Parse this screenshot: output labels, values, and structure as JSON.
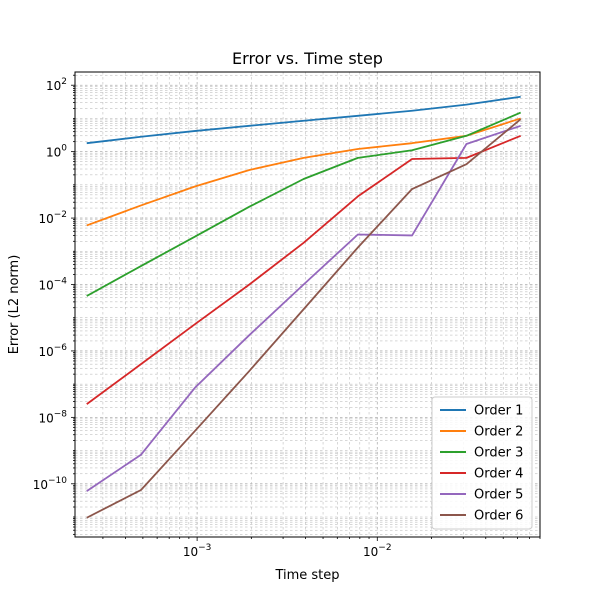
{
  "chart_data": {
    "type": "line",
    "title": "Error vs. Time step",
    "xlabel": "Time step",
    "ylabel": "Error (L2 norm)",
    "xscale": "log",
    "yscale": "log",
    "xlim": [
      0.00021,
      0.08
    ],
    "ylim": [
      2.5e-12,
      250
    ],
    "grid": true,
    "legend_position": "lower-right",
    "x_ticks": [
      {
        "value": 0.001,
        "base": "10",
        "exp": "−3"
      },
      {
        "value": 0.01,
        "base": "10",
        "exp": "−2"
      }
    ],
    "y_ticks": [
      {
        "value": 1e-10,
        "base": "10",
        "exp": "−10"
      },
      {
        "value": 1e-08,
        "base": "10",
        "exp": "−8"
      },
      {
        "value": 1e-06,
        "base": "10",
        "exp": "−6"
      },
      {
        "value": 0.0001,
        "base": "10",
        "exp": "−4"
      },
      {
        "value": 0.01,
        "base": "10",
        "exp": "−2"
      },
      {
        "value": 1,
        "base": "10",
        "exp": "0"
      },
      {
        "value": 100,
        "base": "10",
        "exp": "2"
      }
    ],
    "x": [
      0.000244,
      0.000488,
      0.000977,
      0.00195,
      0.0039,
      0.0078,
      0.0156,
      0.03125,
      0.0625
    ],
    "series": [
      {
        "name": "Order 1",
        "color": "#1f77b4",
        "values": [
          1.8,
          2.8,
          4.2,
          6.0,
          8.5,
          12.0,
          17.0,
          26.0,
          45.0
        ]
      },
      {
        "name": "Order 2",
        "color": "#ff7f0e",
        "values": [
          0.006,
          0.024,
          0.09,
          0.28,
          0.65,
          1.2,
          1.8,
          3.0,
          10.0
        ]
      },
      {
        "name": "Order 3",
        "color": "#2ca02c",
        "values": [
          4.5e-05,
          0.00036,
          0.0028,
          0.022,
          0.15,
          0.65,
          1.1,
          3.0,
          15.0
        ]
      },
      {
        "name": "Order 4",
        "color": "#d62728",
        "values": [
          2.5e-08,
          4e-07,
          6.5e-06,
          0.0001,
          0.0018,
          0.045,
          0.6,
          0.65,
          3.0
        ]
      },
      {
        "name": "Order 5",
        "color": "#9467bd",
        "values": [
          6e-11,
          7.5e-10,
          8e-08,
          3e-06,
          0.0001,
          0.0032,
          0.003,
          1.7,
          6.0
        ]
      },
      {
        "name": "Order 6",
        "color": "#8c564b",
        "values": [
          9.5e-12,
          6.5e-11,
          4e-09,
          2.5e-07,
          1.8e-05,
          0.0013,
          0.075,
          0.42,
          9.5
        ]
      }
    ]
  }
}
